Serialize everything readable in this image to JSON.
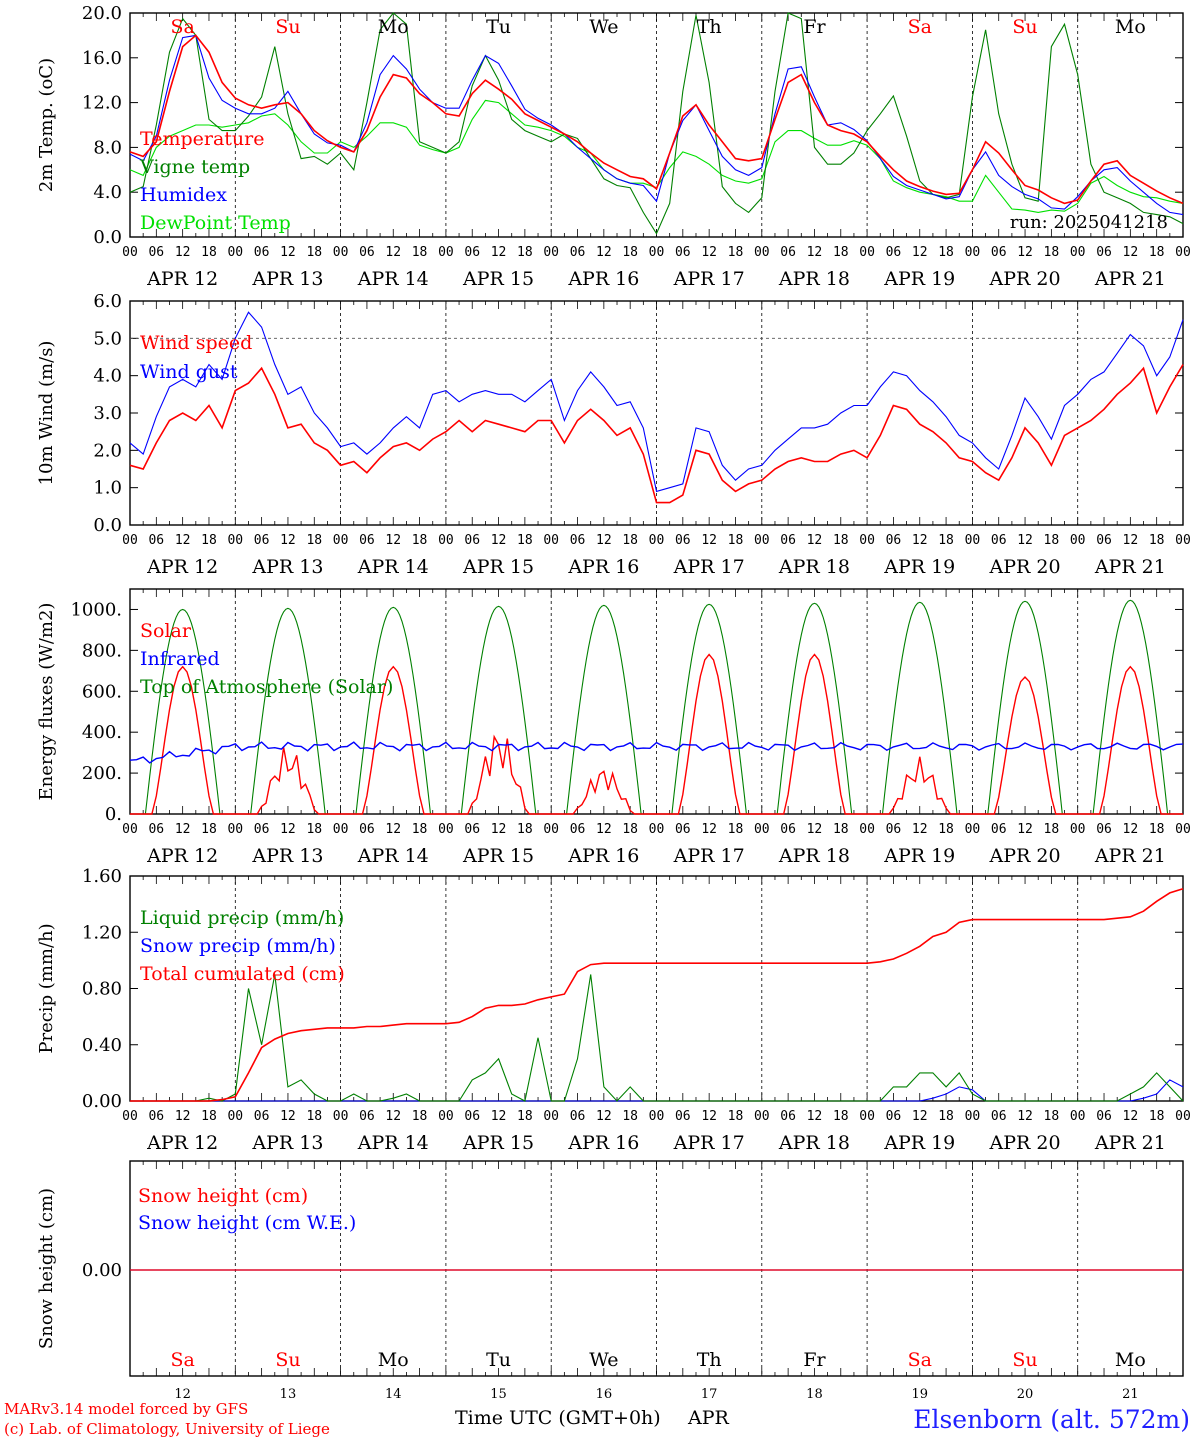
{
  "colors": {
    "temperature": "#ff0000",
    "vigne": "#008000",
    "humidex": "#0000ff",
    "dewpoint": "#00e000",
    "red": "#ff0000",
    "blue": "#0000ff",
    "green": "#008000",
    "station": "#2020ff"
  },
  "days": {
    "dates": [
      "APR 12",
      "APR 13",
      "APR 14",
      "APR 15",
      "APR 16",
      "APR 17",
      "APR 18",
      "APR 19",
      "APR 20",
      "APR 21"
    ],
    "weekdays": [
      "Sa",
      "Su",
      "Mo",
      "Tu",
      "We",
      "Th",
      "Fr",
      "Sa",
      "Su",
      "Mo"
    ],
    "weekday_colors": [
      "#ff0000",
      "#ff0000",
      "#000000",
      "#000000",
      "#000000",
      "#000000",
      "#000000",
      "#ff0000",
      "#ff0000",
      "#000000"
    ],
    "day_numbers": [
      "12",
      "13",
      "14",
      "15",
      "16",
      "17",
      "18",
      "19",
      "20",
      "21"
    ],
    "hour_labels": [
      "00",
      "06",
      "12",
      "18"
    ],
    "final_hour_label": "00"
  },
  "footer": {
    "credit_line1": "MARv3.14 model forced by GFS",
    "credit_line2": "(c) Lab. of Climatology, University of Liege",
    "xaxis_title": "Time UTC (GMT+0h)",
    "month": "APR",
    "station": "Elsenborn (alt. 572m)"
  },
  "chart_data": [
    {
      "id": "temp",
      "type": "line",
      "ylabel": "2m Temp. (oC)",
      "ylim": [
        0,
        20
      ],
      "yticks": [
        "0.0",
        "4.0",
        "8.0",
        "12.0",
        "16.0",
        "20.0"
      ],
      "grid": false,
      "annotation": "run: 2025041218",
      "x_hours": [
        0,
        3,
        6,
        9,
        12,
        15,
        18,
        21,
        24,
        27,
        30,
        33,
        36,
        39,
        42,
        45,
        48,
        51,
        54,
        57,
        60,
        63,
        66,
        69,
        72,
        75,
        78,
        81,
        84,
        87,
        90,
        93,
        96,
        99,
        102,
        105,
        108,
        111,
        114,
        117,
        120,
        123,
        126,
        129,
        132,
        135,
        138,
        141,
        144,
        147,
        150,
        153,
        156,
        159,
        162,
        165,
        168,
        171,
        174,
        177,
        180,
        183,
        186,
        189,
        192,
        195,
        198,
        201,
        204,
        207,
        210,
        213,
        216,
        219,
        222,
        225,
        228,
        231,
        234,
        237,
        240
      ],
      "series": [
        {
          "name": "Temperature",
          "color": "#ff0000",
          "values": [
            7.6,
            7.2,
            8.5,
            13,
            17,
            18,
            16.5,
            13.8,
            12.4,
            11.8,
            11.5,
            11.8,
            12,
            11,
            9.5,
            8.6,
            8,
            7.6,
            9.5,
            12.5,
            14.5,
            14.2,
            12.8,
            12,
            11,
            10.8,
            12.8,
            14,
            13.2,
            12.3,
            11,
            10.4,
            9.8,
            9.2,
            8.5,
            7.5,
            6.6,
            6,
            5.4,
            5.2,
            4.3,
            7.5,
            10.8,
            11.8,
            10,
            8.5,
            7,
            6.8,
            7,
            10.5,
            13.8,
            14.5,
            12,
            10,
            9.5,
            9.2,
            8.5,
            7.2,
            6,
            5,
            4.5,
            4.1,
            3.8,
            3.9,
            6,
            8.5,
            7.5,
            6,
            4.6,
            4.2,
            3.5,
            3,
            3.3,
            5,
            6.5,
            6.8,
            5.5,
            4.8,
            4.1,
            3.5,
            3
          ]
        },
        {
          "name": "Vigne temp",
          "color": "#008000",
          "values": [
            4,
            4.5,
            10,
            16.5,
            19.5,
            18,
            10.5,
            9.5,
            9.5,
            10.8,
            12.5,
            17,
            11,
            7,
            7.2,
            6.5,
            7.5,
            6,
            12,
            18.5,
            20,
            19,
            8.5,
            8,
            7.5,
            8.5,
            13.5,
            16.2,
            14,
            10.5,
            9.5,
            9,
            8.5,
            9.2,
            8.8,
            7,
            5.2,
            4.6,
            4.4,
            2.2,
            0.3,
            3,
            13,
            19.8,
            13.8,
            4.5,
            3,
            2.2,
            3.5,
            13,
            20,
            19.5,
            8,
            6.5,
            6.5,
            7.5,
            9.5,
            11,
            12.6,
            9,
            5,
            3.8,
            3.5,
            3.8,
            12.5,
            18.5,
            11,
            6.5,
            3.5,
            3.2,
            17,
            19,
            14.5,
            6.5,
            4,
            3.5,
            3,
            2.2,
            2,
            1.8,
            1.2
          ]
        },
        {
          "name": "Humidex",
          "color": "#0000ff",
          "values": [
            7.4,
            6.8,
            9,
            14,
            17.8,
            18,
            14.2,
            12.2,
            11.5,
            11,
            11,
            11.5,
            13,
            11,
            9.2,
            8.4,
            8.2,
            7.6,
            10.2,
            14.5,
            16.2,
            15,
            13.2,
            12,
            11.5,
            11.5,
            14,
            16.2,
            15.5,
            13.5,
            11.4,
            10.6,
            10,
            9.2,
            8,
            7,
            6,
            5.2,
            4.8,
            4.6,
            3.2,
            7.5,
            10.4,
            11.8,
            9.5,
            7.2,
            6,
            5.5,
            6.2,
            11,
            15,
            15.2,
            12.5,
            10,
            10.2,
            9.6,
            8.6,
            7,
            5.4,
            4.6,
            4.2,
            3.8,
            3.4,
            3.6,
            6,
            7.6,
            5.5,
            4.5,
            3.8,
            3.4,
            2.6,
            2.5,
            3.6,
            5,
            6,
            6.2,
            5,
            4,
            3,
            2.2,
            2
          ]
        },
        {
          "name": "DewPoint Temp",
          "color": "#00e000",
          "values": [
            6,
            5.5,
            8,
            9,
            9.5,
            10,
            10,
            9.8,
            10,
            10.2,
            10.8,
            11,
            10,
            8.5,
            7.5,
            7.5,
            8.5,
            8,
            9,
            10.2,
            10.2,
            9.8,
            8.2,
            7.8,
            7.5,
            8,
            10.5,
            12.2,
            12,
            11,
            10,
            9.8,
            9.5,
            9,
            8,
            7.5,
            6,
            5.2,
            4.8,
            4.8,
            4.4,
            6.2,
            7.6,
            7.2,
            6.5,
            5.5,
            5,
            4.8,
            5.2,
            8.5,
            9.5,
            9.5,
            8.8,
            8.2,
            8.2,
            8.6,
            8.2,
            7,
            5,
            4.4,
            4,
            3.8,
            3.6,
            3.2,
            3.2,
            5.5,
            4,
            2.5,
            2.4,
            2.2,
            2.4,
            2.3,
            3,
            4.8,
            5.4,
            4.6,
            4,
            3.6,
            3.5,
            3.2,
            3
          ]
        }
      ]
    },
    {
      "id": "wind",
      "type": "line",
      "ylabel": "10m Wind (m/s)",
      "ylim": [
        0,
        6
      ],
      "yticks": [
        "0.0",
        "1.0",
        "2.0",
        "3.0",
        "4.0",
        "5.0",
        "6.0"
      ],
      "reference_line": 5,
      "x_hours": [
        0,
        3,
        6,
        9,
        12,
        15,
        18,
        21,
        24,
        27,
        30,
        33,
        36,
        39,
        42,
        45,
        48,
        51,
        54,
        57,
        60,
        63,
        66,
        69,
        72,
        75,
        78,
        81,
        84,
        87,
        90,
        93,
        96,
        99,
        102,
        105,
        108,
        111,
        114,
        117,
        120,
        123,
        126,
        129,
        132,
        135,
        138,
        141,
        144,
        147,
        150,
        153,
        156,
        159,
        162,
        165,
        168,
        171,
        174,
        177,
        180,
        183,
        186,
        189,
        192,
        195,
        198,
        201,
        204,
        207,
        210,
        213,
        216,
        219,
        222,
        225,
        228,
        231,
        234,
        237,
        240
      ],
      "series": [
        {
          "name": "Wind speed",
          "color": "#ff0000",
          "values": [
            1.6,
            1.5,
            2.2,
            2.8,
            3,
            2.8,
            3.2,
            2.6,
            3.6,
            3.8,
            4.2,
            3.5,
            2.6,
            2.7,
            2.2,
            2,
            1.6,
            1.7,
            1.4,
            1.8,
            2.1,
            2.2,
            2,
            2.3,
            2.5,
            2.8,
            2.5,
            2.8,
            2.7,
            2.6,
            2.5,
            2.8,
            2.8,
            2.2,
            2.8,
            3.1,
            2.8,
            2.4,
            2.6,
            1.9,
            0.6,
            0.6,
            0.8,
            2,
            1.9,
            1.2,
            0.9,
            1.1,
            1.2,
            1.5,
            1.7,
            1.8,
            1.7,
            1.7,
            1.9,
            2,
            1.8,
            2.4,
            3.2,
            3.1,
            2.7,
            2.5,
            2.2,
            1.8,
            1.7,
            1.4,
            1.2,
            1.8,
            2.6,
            2.2,
            1.6,
            2.4,
            2.6,
            2.8,
            3.1,
            3.5,
            3.8,
            4.2,
            3,
            3.7,
            4.3
          ]
        },
        {
          "name": "Wind gust",
          "color": "#0000ff",
          "values": [
            2.2,
            1.9,
            2.9,
            3.7,
            3.9,
            3.7,
            4.3,
            3.9,
            5,
            5.7,
            5.3,
            4.3,
            3.5,
            3.7,
            3,
            2.6,
            2.1,
            2.2,
            1.9,
            2.2,
            2.6,
            2.9,
            2.6,
            3.5,
            3.6,
            3.3,
            3.5,
            3.6,
            3.5,
            3.5,
            3.3,
            3.6,
            3.9,
            2.8,
            3.6,
            4.1,
            3.7,
            3.2,
            3.3,
            2.6,
            0.9,
            1,
            1.1,
            2.6,
            2.5,
            1.6,
            1.2,
            1.5,
            1.6,
            2,
            2.3,
            2.6,
            2.6,
            2.7,
            3,
            3.2,
            3.2,
            3.7,
            4.1,
            4,
            3.6,
            3.3,
            2.9,
            2.4,
            2.2,
            1.8,
            1.5,
            2.4,
            3.4,
            2.9,
            2.3,
            3.2,
            3.5,
            3.9,
            4.1,
            4.6,
            5.1,
            4.8,
            4,
            4.5,
            5.5
          ]
        }
      ]
    },
    {
      "id": "energy",
      "type": "line",
      "ylabel": "Energy fluxes (W/m2)",
      "ylim": [
        0,
        1100
      ],
      "yticks": [
        "0.",
        "200.",
        "400.",
        "600.",
        "800.",
        "1000."
      ],
      "series": [
        {
          "name": "Solar",
          "color": "#ff0000",
          "daily_peaks": [
            720,
            340,
            720,
            430,
            240,
            780,
            780,
            280,
            670,
            720
          ]
        },
        {
          "name": "Infrared",
          "color": "#0000ff",
          "level_start": 255,
          "level": 330
        },
        {
          "name": "Top of Atmosphere (Solar)",
          "color": "#008000",
          "daily_peaks": [
            1000,
            1005,
            1010,
            1015,
            1020,
            1025,
            1030,
            1035,
            1040,
            1045
          ]
        }
      ]
    },
    {
      "id": "precip",
      "type": "line",
      "ylabel": "Precip (mm/h)",
      "ylim": [
        0,
        1.6
      ],
      "yticks": [
        "0.00",
        "0.40",
        "0.80",
        "1.20",
        "1.60"
      ],
      "x_hours": [
        0,
        3,
        6,
        9,
        12,
        15,
        18,
        21,
        24,
        27,
        30,
        33,
        36,
        39,
        42,
        45,
        48,
        51,
        54,
        57,
        60,
        63,
        66,
        69,
        72,
        75,
        78,
        81,
        84,
        87,
        90,
        93,
        96,
        99,
        102,
        105,
        108,
        111,
        114,
        117,
        120,
        123,
        126,
        129,
        132,
        135,
        138,
        141,
        144,
        147,
        150,
        153,
        156,
        159,
        162,
        165,
        168,
        171,
        174,
        177,
        180,
        183,
        186,
        189,
        192,
        195,
        198,
        201,
        204,
        207,
        210,
        213,
        216,
        219,
        222,
        225,
        228,
        231,
        234,
        237,
        240
      ],
      "series": [
        {
          "name": "Liquid precip (mm/h)",
          "color": "#008000",
          "values": [
            0,
            0,
            0,
            0,
            0,
            0,
            0.02,
            0,
            0.05,
            0.8,
            0.4,
            0.9,
            0.1,
            0.15,
            0.05,
            0,
            0,
            0.05,
            0,
            0,
            0.02,
            0.05,
            0,
            0,
            0,
            0,
            0.15,
            0.2,
            0.3,
            0.05,
            0,
            0.45,
            0,
            0,
            0.3,
            0.9,
            0.1,
            0,
            0.1,
            0,
            0,
            0,
            0,
            0,
            0,
            0,
            0,
            0,
            0,
            0,
            0,
            0,
            0,
            0,
            0,
            0,
            0,
            0,
            0.1,
            0.1,
            0.2,
            0.2,
            0.1,
            0.2,
            0.05,
            0,
            0,
            0,
            0,
            0,
            0,
            0,
            0,
            0,
            0,
            0,
            0.05,
            0.1,
            0.2,
            0.1,
            0
          ]
        },
        {
          "name": "Snow precip (mm/h)",
          "color": "#0000ff",
          "values": [
            0,
            0,
            0,
            0,
            0,
            0,
            0,
            0,
            0,
            0,
            0,
            0,
            0,
            0,
            0,
            0,
            0,
            0,
            0,
            0,
            0,
            0,
            0,
            0,
            0,
            0,
            0,
            0,
            0,
            0,
            0,
            0,
            0,
            0,
            0,
            0,
            0,
            0,
            0,
            0,
            0,
            0,
            0,
            0,
            0,
            0,
            0,
            0,
            0,
            0,
            0,
            0,
            0,
            0,
            0,
            0,
            0,
            0,
            0,
            0,
            0,
            0.02,
            0.05,
            0.1,
            0.08,
            0,
            0,
            0,
            0,
            0,
            0,
            0,
            0,
            0,
            0,
            0,
            0,
            0.02,
            0.05,
            0.15,
            0.1
          ]
        },
        {
          "name": "Total cumulated (cm)",
          "color": "#ff0000",
          "values": [
            0,
            0,
            0,
            0,
            0,
            0,
            0,
            0.01,
            0.03,
            0.2,
            0.38,
            0.44,
            0.48,
            0.5,
            0.51,
            0.52,
            0.52,
            0.52,
            0.53,
            0.53,
            0.54,
            0.55,
            0.55,
            0.55,
            0.55,
            0.56,
            0.6,
            0.66,
            0.68,
            0.68,
            0.69,
            0.72,
            0.74,
            0.76,
            0.92,
            0.97,
            0.98,
            0.98,
            0.98,
            0.98,
            0.98,
            0.98,
            0.98,
            0.98,
            0.98,
            0.98,
            0.98,
            0.98,
            0.98,
            0.98,
            0.98,
            0.98,
            0.98,
            0.98,
            0.98,
            0.98,
            0.98,
            0.99,
            1.01,
            1.05,
            1.1,
            1.17,
            1.2,
            1.27,
            1.29,
            1.29,
            1.29,
            1.29,
            1.29,
            1.29,
            1.29,
            1.29,
            1.29,
            1.29,
            1.29,
            1.3,
            1.31,
            1.35,
            1.42,
            1.48,
            1.51
          ]
        }
      ]
    },
    {
      "id": "snow",
      "type": "line",
      "ylabel": "Snow height (cm)",
      "yticks": [
        "0.00"
      ],
      "series": [
        {
          "name": "Snow height (cm)",
          "color": "#ff0000",
          "constant": 0
        },
        {
          "name": "Snow height (cm W.E.)",
          "color": "#0000ff",
          "constant": 0
        }
      ]
    }
  ]
}
